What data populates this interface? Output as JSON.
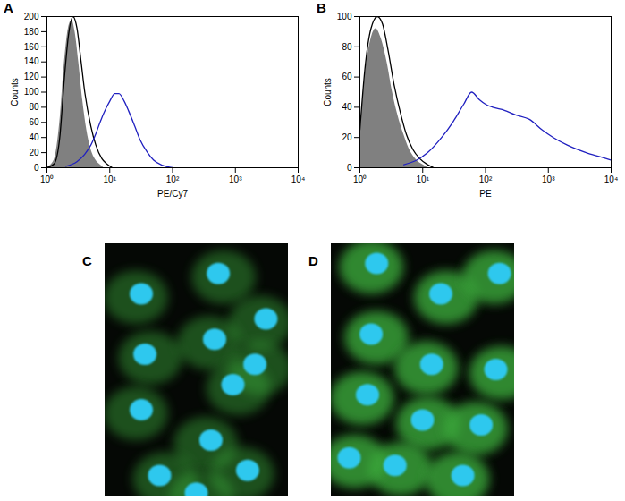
{
  "chart_data": [
    {
      "type": "line",
      "title": "A",
      "xlabel": "PE/Cy7",
      "ylabel": "Counts",
      "log": "x",
      "grid": false,
      "xlim": [
        1,
        10000
      ],
      "xticks": [
        {
          "value": 1,
          "label": "10⁰"
        },
        {
          "value": 10,
          "label": "10¹"
        },
        {
          "value": 100,
          "label": "10²"
        },
        {
          "value": 1000,
          "label": "10³"
        },
        {
          "value": 10000,
          "label": "10⁴"
        }
      ],
      "ylim": [
        0,
        200
      ],
      "yticks": [
        0,
        20,
        40,
        60,
        80,
        100,
        120,
        140,
        160,
        180,
        200
      ],
      "series": [
        {
          "type": "area",
          "color": "#808080",
          "x": [
            1,
            1.3,
            1.6,
            1.9,
            2.2,
            2.5,
            2.8,
            3.2,
            3.7,
            4.3,
            5,
            6,
            7,
            8
          ],
          "values": [
            0,
            10,
            60,
            140,
            185,
            195,
            180,
            140,
            90,
            50,
            25,
            10,
            4,
            0
          ]
        },
        {
          "type": "line",
          "color": "#000000",
          "x": [
            1,
            1.3,
            1.6,
            1.9,
            2.2,
            2.6,
            3,
            3.5,
            4,
            5,
            6,
            7.5,
            9,
            11
          ],
          "values": [
            0,
            5,
            40,
            120,
            175,
            200,
            185,
            140,
            100,
            55,
            30,
            12,
            5,
            0
          ]
        },
        {
          "type": "line",
          "color": "#2020c0",
          "x": [
            2,
            3,
            4,
            5,
            6,
            7,
            8,
            10,
            12,
            14,
            17,
            20,
            25,
            30,
            40,
            50,
            70,
            100
          ],
          "values": [
            2,
            8,
            18,
            30,
            45,
            60,
            72,
            88,
            98,
            98,
            88,
            75,
            55,
            38,
            20,
            10,
            3,
            0
          ]
        }
      ]
    },
    {
      "type": "line",
      "title": "B",
      "xlabel": "PE",
      "ylabel": "Counts",
      "log": "x",
      "grid": false,
      "xlim": [
        1,
        10000
      ],
      "xticks": [
        {
          "value": 1,
          "label": "10⁰"
        },
        {
          "value": 10,
          "label": "10¹"
        },
        {
          "value": 100,
          "label": "10²"
        },
        {
          "value": 1000,
          "label": "10³"
        },
        {
          "value": 10000,
          "label": "10⁴"
        }
      ],
      "ylim": [
        0,
        100
      ],
      "yticks": [
        0,
        20,
        40,
        60,
        80,
        100
      ],
      "series": [
        {
          "type": "area",
          "color": "#808080",
          "x": [
            1,
            1.2,
            1.5,
            1.8,
            2.2,
            2.7,
            3.3,
            4,
            5,
            6,
            8,
            10,
            12
          ],
          "values": [
            20,
            60,
            85,
            92,
            85,
            70,
            50,
            35,
            22,
            13,
            5,
            2,
            0
          ]
        },
        {
          "type": "line",
          "color": "#000000",
          "x": [
            1,
            1.2,
            1.5,
            1.9,
            2.3,
            2.8,
            3.5,
            4.5,
            5.5,
            7,
            9,
            12,
            15
          ],
          "values": [
            25,
            65,
            92,
            100,
            95,
            78,
            55,
            35,
            22,
            12,
            6,
            2,
            0
          ]
        },
        {
          "type": "line",
          "color": "#2020c0",
          "x": [
            5,
            8,
            12,
            20,
            30,
            45,
            60,
            80,
            100,
            130,
            200,
            300,
            500,
            800,
            1200,
            2000,
            4000,
            7000,
            10000
          ],
          "values": [
            2,
            5,
            10,
            20,
            30,
            42,
            50,
            45,
            42,
            40,
            38,
            35,
            32,
            25,
            20,
            15,
            10,
            7,
            5
          ]
        }
      ]
    }
  ],
  "images": [
    {
      "label": "C"
    },
    {
      "label": "D"
    }
  ]
}
